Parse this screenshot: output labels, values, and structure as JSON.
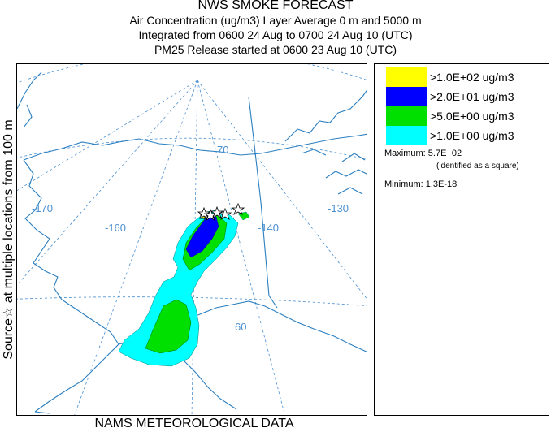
{
  "header": {
    "title": "NWS SMOKE FORECAST",
    "line1": "Air Concentration (ug/m3) Layer Average    0 m and  5000 m",
    "line2": "Integrated from 0600 24 Aug to 0700 24 Aug 10 (UTC)",
    "line3": "PM25 Release started at 0600 23 Aug 10 (UTC)"
  },
  "side_label": "Source☆  at multiple locations    from   100 m",
  "footer": "NAMS METEOROLOGICAL DATA",
  "map": {
    "graticule_labels": {
      "lon_w170": "-170",
      "lon_w160": "-160",
      "lon_w140": "-140",
      "lon_w130": "-130",
      "lat_70": "70",
      "lat_60": "60"
    },
    "colors": {
      "graticule": "#4a8fd0",
      "coastline": "#2a7fc0",
      "background": "#ffffff"
    }
  },
  "legend": {
    "items": [
      {
        "label": ">1.0E+02 ug/m3",
        "color": "#ffff00"
      },
      {
        "label": ">2.0E+01 ug/m3",
        "color": "#0000ff"
      },
      {
        "label": ">5.0E+00 ug/m3",
        "color": "#00e000"
      },
      {
        "label": ">1.0E+00 ug/m3",
        "color": "#00ffff"
      }
    ],
    "maximum": "Maximum: 5.7E+02",
    "maximum_note": "(identified as a square)",
    "minimum": "Minimum: 1.3E-18"
  }
}
